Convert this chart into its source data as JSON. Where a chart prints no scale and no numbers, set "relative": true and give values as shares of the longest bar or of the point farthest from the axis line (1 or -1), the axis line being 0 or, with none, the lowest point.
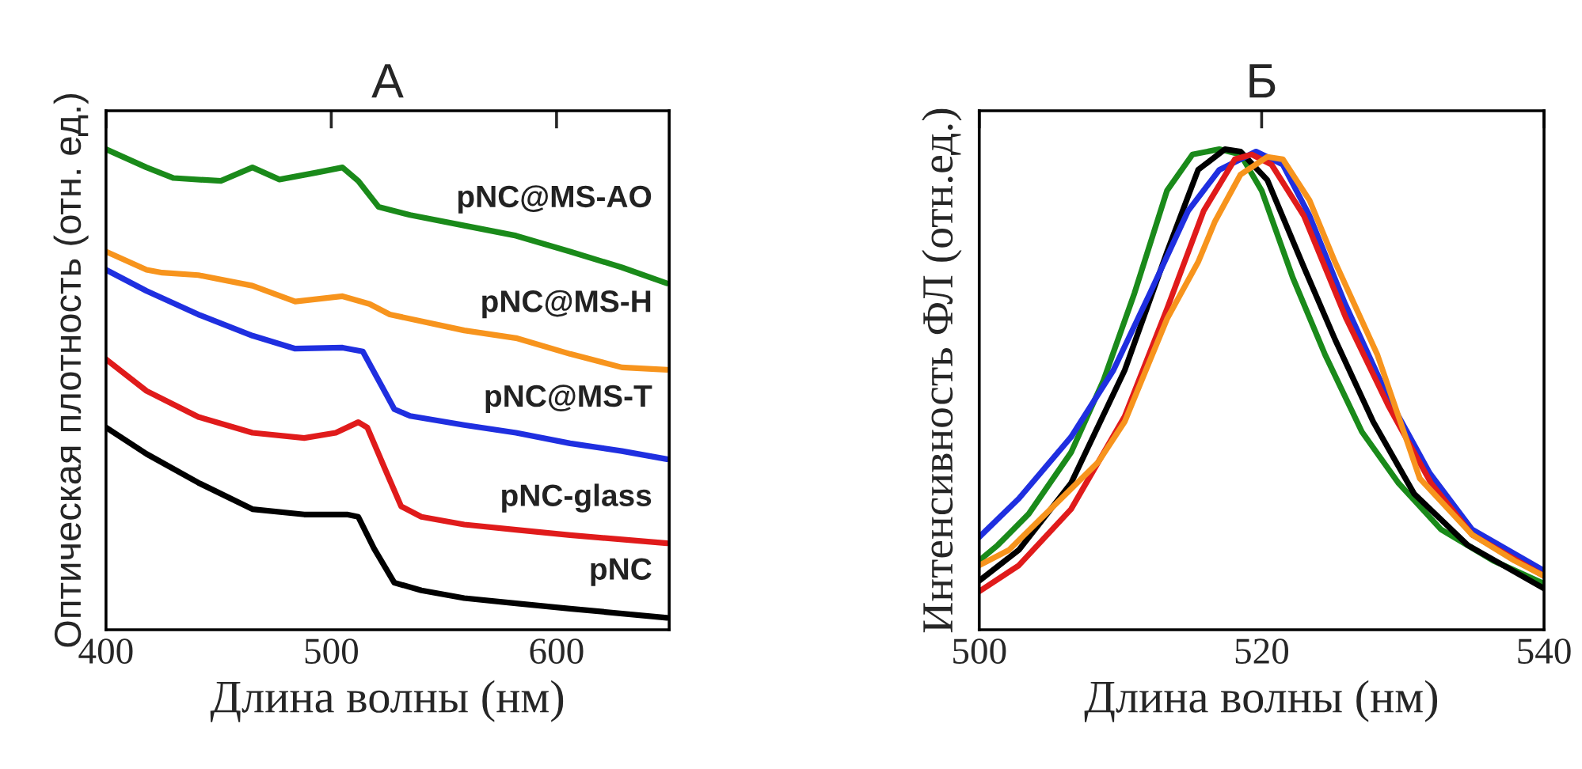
{
  "chart_data": [
    {
      "type": "line",
      "title": "А",
      "xlabel": "Длина волны (нм)",
      "ylabel": "Оптическая плотность (отн. ед.)",
      "relative": true,
      "xlim": [
        400,
        650
      ],
      "xticks": [
        400,
        500,
        600
      ],
      "tick_labels": "x",
      "grid": false,
      "legend": false,
      "series": [
        {
          "name": "pNC@MS-AO",
          "color": "#1a8a1a",
          "x": [
            400,
            418,
            430,
            451,
            465,
            477,
            493,
            505,
            512,
            521,
            535,
            559,
            582,
            606,
            629,
            649
          ],
          "values": [
            1.0,
            0.962,
            0.94,
            0.934,
            0.962,
            0.937,
            0.951,
            0.962,
            0.934,
            0.88,
            0.863,
            0.841,
            0.82,
            0.787,
            0.754,
            0.721
          ]
        },
        {
          "name": "pNC@MS-H",
          "color": "#f7941d",
          "x": [
            400,
            418,
            425,
            441,
            465,
            484,
            505,
            517,
            526,
            559,
            582,
            606,
            629,
            649
          ],
          "values": [
            0.787,
            0.749,
            0.743,
            0.738,
            0.716,
            0.683,
            0.694,
            0.678,
            0.656,
            0.623,
            0.607,
            0.574,
            0.546,
            0.541
          ]
        },
        {
          "name": "pNC@MS-T",
          "color": "#1f2fe0",
          "x": [
            400,
            418,
            441,
            465,
            484,
            505,
            514,
            521,
            528,
            535,
            559,
            582,
            606,
            629,
            649
          ],
          "values": [
            0.749,
            0.705,
            0.656,
            0.612,
            0.585,
            0.587,
            0.579,
            0.519,
            0.459,
            0.445,
            0.426,
            0.41,
            0.388,
            0.372,
            0.355
          ]
        },
        {
          "name": "pNC-glass",
          "color": "#e01b1b",
          "x": [
            400,
            418,
            441,
            465,
            488,
            502,
            512,
            516,
            524,
            531,
            540,
            559,
            582,
            606,
            649
          ],
          "values": [
            0.563,
            0.497,
            0.443,
            0.41,
            0.399,
            0.41,
            0.432,
            0.421,
            0.333,
            0.257,
            0.235,
            0.219,
            0.208,
            0.197,
            0.18
          ]
        },
        {
          "name": "pNC",
          "color": "#000000",
          "x": [
            400,
            418,
            441,
            465,
            488,
            507,
            512,
            519,
            528,
            540,
            559,
            582,
            606,
            649
          ],
          "values": [
            0.421,
            0.366,
            0.306,
            0.251,
            0.24,
            0.24,
            0.235,
            0.169,
            0.098,
            0.082,
            0.066,
            0.055,
            0.044,
            0.025
          ]
        }
      ]
    },
    {
      "type": "line",
      "title": "Б",
      "xlabel": "Длина волны (нм)",
      "ylabel": "Интенсивность ФЛ (отн.ед.)",
      "relative": true,
      "xlim": [
        500,
        540
      ],
      "xticks": [
        500,
        520,
        540
      ],
      "tick_labels": "x",
      "grid": false,
      "legend": false,
      "series": [
        {
          "color": "#1a8a1a",
          "x": [
            500,
            501.3,
            503.5,
            506.5,
            508.8,
            511.0,
            513.3,
            515.1,
            517.0,
            518.5,
            520.0,
            522.2,
            524.5,
            527.1,
            529.7,
            532.7,
            536.4,
            540
          ],
          "values": [
            0.144,
            0.176,
            0.241,
            0.369,
            0.519,
            0.701,
            0.914,
            0.989,
            1.0,
            0.989,
            0.914,
            0.733,
            0.572,
            0.412,
            0.305,
            0.209,
            0.144,
            0.096
          ]
        },
        {
          "color": "#000000",
          "x": [
            500,
            502.8,
            506.5,
            510.3,
            513.3,
            515.5,
            517.4,
            518.5,
            520.4,
            523.0,
            525.2,
            527.9,
            530.8,
            534.6,
            540
          ],
          "values": [
            0.102,
            0.166,
            0.305,
            0.54,
            0.786,
            0.957,
            1.0,
            0.995,
            0.936,
            0.754,
            0.604,
            0.433,
            0.283,
            0.176,
            0.086
          ]
        },
        {
          "color": "#1f2fe0",
          "x": [
            500,
            502.8,
            506.5,
            509.5,
            512.1,
            514.8,
            517.0,
            519.6,
            521.5,
            523.4,
            525.9,
            528.9,
            531.9,
            534.9,
            540
          ],
          "values": [
            0.193,
            0.273,
            0.401,
            0.54,
            0.701,
            0.872,
            0.957,
            0.995,
            0.968,
            0.861,
            0.679,
            0.487,
            0.326,
            0.209,
            0.123
          ]
        },
        {
          "color": "#e01b1b",
          "x": [
            500,
            502.8,
            506.5,
            510.3,
            513.3,
            515.9,
            518.1,
            519.3,
            520.7,
            523.0,
            526.0,
            529.0,
            532.0,
            534.9,
            540
          ],
          "values": [
            0.08,
            0.134,
            0.251,
            0.444,
            0.668,
            0.872,
            0.979,
            0.989,
            0.968,
            0.861,
            0.647,
            0.465,
            0.305,
            0.198,
            0.112
          ]
        },
        {
          "color": "#f7941d",
          "x": [
            500,
            502.1,
            504.7,
            508.4,
            510.3,
            513.3,
            515.5,
            516.7,
            518.5,
            520.4,
            521.5,
            523.4,
            525.2,
            528.2,
            531.2,
            534.9,
            537.9,
            540
          ],
          "values": [
            0.134,
            0.166,
            0.241,
            0.348,
            0.433,
            0.647,
            0.765,
            0.85,
            0.947,
            0.984,
            0.979,
            0.893,
            0.765,
            0.572,
            0.315,
            0.198,
            0.144,
            0.112
          ]
        }
      ]
    }
  ]
}
